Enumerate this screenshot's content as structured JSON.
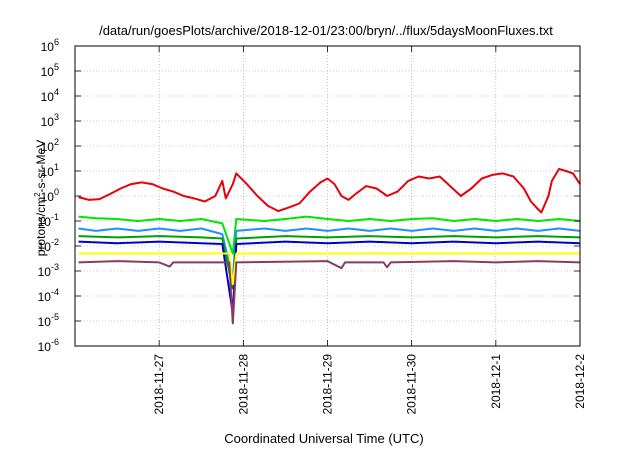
{
  "chart_data": {
    "type": "line",
    "title": "/data/run/goesPlots/archive/2018-12-01/23:00/bryn/../flux/5daysMoonFluxes.txt",
    "xlabel": "Coordinated Universal Time (UTC)",
    "ylabel": {
      "base": "protons/cm",
      "sup": "2",
      "rest": "-s-sr-MeV"
    },
    "x_ticks": [
      "2018-11-27",
      "2018-11-28",
      "2018-11-29",
      "2018-11-30",
      "2018-12-1",
      "2018-12-2"
    ],
    "x_range": [
      "2018-11-26 00:00",
      "2018-12-02 00:00"
    ],
    "y_scale": "log",
    "y_ticks": [
      {
        "base": "10",
        "exp": "-6"
      },
      {
        "base": "10",
        "exp": "-5"
      },
      {
        "base": "10",
        "exp": "-4"
      },
      {
        "base": "10",
        "exp": "-3"
      },
      {
        "base": "10",
        "exp": "-2"
      },
      {
        "base": "10",
        "exp": "-1"
      },
      {
        "base": "10",
        "exp": "0"
      },
      {
        "base": "10",
        "exp": "1"
      },
      {
        "base": "10",
        "exp": "2"
      },
      {
        "base": "10",
        "exp": "3"
      },
      {
        "base": "10",
        "exp": "4"
      },
      {
        "base": "10",
        "exp": "5"
      },
      {
        "base": "10",
        "exp": "6"
      }
    ],
    "y_range": [
      1e-06,
      1000000.0
    ],
    "grid": true,
    "series": [
      {
        "color": "#e8000b",
        "points": [
          [
            "2018-11-26 01:00",
            0.9
          ],
          [
            "2018-11-26 04:00",
            0.7
          ],
          [
            "2018-11-26 07:00",
            0.75
          ],
          [
            "2018-11-26 10:00",
            1.2
          ],
          [
            "2018-11-26 13:00",
            2.0
          ],
          [
            "2018-11-26 16:00",
            3.0
          ],
          [
            "2018-11-26 19:00",
            3.5
          ],
          [
            "2018-11-26 22:00",
            3.0
          ],
          [
            "2018-11-27 01:00",
            2.0
          ],
          [
            "2018-11-27 04:00",
            1.5
          ],
          [
            "2018-11-27 07:00",
            1.0
          ],
          [
            "2018-11-27 10:00",
            0.8
          ],
          [
            "2018-11-27 13:00",
            0.6
          ],
          [
            "2018-11-27 16:00",
            1.0
          ],
          [
            "2018-11-27 18:00",
            4.0
          ],
          [
            "2018-11-27 19:00",
            0.8
          ],
          [
            "2018-11-27 21:00",
            3.0
          ],
          [
            "2018-11-27 22:00",
            8.0
          ],
          [
            "2018-11-28 01:00",
            3.0
          ],
          [
            "2018-11-28 04:00",
            1.0
          ],
          [
            "2018-11-28 07:00",
            0.4
          ],
          [
            "2018-11-28 10:00",
            0.25
          ],
          [
            "2018-11-28 13:00",
            0.35
          ],
          [
            "2018-11-28 16:00",
            0.5
          ],
          [
            "2018-11-28 19:00",
            1.5
          ],
          [
            "2018-11-28 22:00",
            3.5
          ],
          [
            "2018-11-29 00:00",
            5.0
          ],
          [
            "2018-11-29 02:00",
            3.0
          ],
          [
            "2018-11-29 04:00",
            1.0
          ],
          [
            "2018-11-29 06:00",
            0.7
          ],
          [
            "2018-11-29 08:00",
            1.2
          ],
          [
            "2018-11-29 11:00",
            2.5
          ],
          [
            "2018-11-29 14:00",
            2.0
          ],
          [
            "2018-11-29 17:00",
            1.0
          ],
          [
            "2018-11-29 20:00",
            1.5
          ],
          [
            "2018-11-29 23:00",
            4.0
          ],
          [
            "2018-11-30 02:00",
            6.0
          ],
          [
            "2018-11-30 05:00",
            5.0
          ],
          [
            "2018-11-30 08:00",
            6.0
          ],
          [
            "2018-11-30 11:00",
            2.5
          ],
          [
            "2018-11-30 14:00",
            1.0
          ],
          [
            "2018-11-30 17:00",
            2.0
          ],
          [
            "2018-11-30 20:00",
            5.0
          ],
          [
            "2018-11-30 23:00",
            7.0
          ],
          [
            "2018-12-01 02:00",
            8.0
          ],
          [
            "2018-12-01 05:00",
            6.0
          ],
          [
            "2018-12-01 08:00",
            2.0
          ],
          [
            "2018-12-01 10:00",
            0.6
          ],
          [
            "2018-12-01 12:00",
            0.3
          ],
          [
            "2018-12-01 13:00",
            0.22
          ],
          [
            "2018-12-01 15:00",
            1.0
          ],
          [
            "2018-12-01 16:00",
            4.0
          ],
          [
            "2018-12-01 18:00",
            12.0
          ],
          [
            "2018-12-01 20:00",
            10.0
          ],
          [
            "2018-12-01 22:00",
            8.0
          ],
          [
            "2018-12-02 00:00",
            3.0
          ]
        ]
      },
      {
        "color": "#00e600",
        "points": [
          [
            "2018-11-26 01:00",
            0.15
          ],
          [
            "2018-11-26 06:00",
            0.13
          ],
          [
            "2018-11-26 12:00",
            0.12
          ],
          [
            "2018-11-26 18:00",
            0.1
          ],
          [
            "2018-11-27 00:00",
            0.12
          ],
          [
            "2018-11-27 06:00",
            0.1
          ],
          [
            "2018-11-27 12:00",
            0.12
          ],
          [
            "2018-11-27 18:00",
            0.08
          ],
          [
            "2018-11-27 21:00",
            0.005
          ],
          [
            "2018-11-27 22:00",
            0.12
          ],
          [
            "2018-11-28 06:00",
            0.1
          ],
          [
            "2018-11-28 12:00",
            0.12
          ],
          [
            "2018-11-28 18:00",
            0.15
          ],
          [
            "2018-11-29 00:00",
            0.12
          ],
          [
            "2018-11-29 06:00",
            0.1
          ],
          [
            "2018-11-29 12:00",
            0.12
          ],
          [
            "2018-11-29 18:00",
            0.1
          ],
          [
            "2018-11-30 00:00",
            0.12
          ],
          [
            "2018-11-30 06:00",
            0.13
          ],
          [
            "2018-11-30 12:00",
            0.1
          ],
          [
            "2018-11-30 18:00",
            0.12
          ],
          [
            "2018-12-01 00:00",
            0.1
          ],
          [
            "2018-12-01 06:00",
            0.12
          ],
          [
            "2018-12-01 12:00",
            0.1
          ],
          [
            "2018-12-01 18:00",
            0.12
          ],
          [
            "2018-12-02 00:00",
            0.1
          ]
        ]
      },
      {
        "color": "#1e90ff",
        "points": [
          [
            "2018-11-26 01:00",
            0.05
          ],
          [
            "2018-11-26 06:00",
            0.04
          ],
          [
            "2018-11-26 12:00",
            0.05
          ],
          [
            "2018-11-26 18:00",
            0.04
          ],
          [
            "2018-11-27 00:00",
            0.05
          ],
          [
            "2018-11-27 06:00",
            0.04
          ],
          [
            "2018-11-27 12:00",
            0.05
          ],
          [
            "2018-11-27 18:00",
            0.03
          ],
          [
            "2018-11-27 21:00",
            0.0005
          ],
          [
            "2018-11-27 22:00",
            0.04
          ],
          [
            "2018-11-28 06:00",
            0.05
          ],
          [
            "2018-11-28 12:00",
            0.04
          ],
          [
            "2018-11-28 18:00",
            0.05
          ],
          [
            "2018-11-29 00:00",
            0.04
          ],
          [
            "2018-11-29 06:00",
            0.05
          ],
          [
            "2018-11-29 12:00",
            0.04
          ],
          [
            "2018-11-29 18:00",
            0.05
          ],
          [
            "2018-11-30 00:00",
            0.04
          ],
          [
            "2018-11-30 06:00",
            0.05
          ],
          [
            "2018-11-30 12:00",
            0.04
          ],
          [
            "2018-11-30 18:00",
            0.05
          ],
          [
            "2018-12-01 00:00",
            0.04
          ],
          [
            "2018-12-01 06:00",
            0.05
          ],
          [
            "2018-12-01 12:00",
            0.04
          ],
          [
            "2018-12-01 18:00",
            0.05
          ],
          [
            "2018-12-02 00:00",
            0.04
          ]
        ]
      },
      {
        "color": "#00a000",
        "points": [
          [
            "2018-11-26 01:00",
            0.025
          ],
          [
            "2018-11-26 12:00",
            0.022
          ],
          [
            "2018-11-27 00:00",
            0.025
          ],
          [
            "2018-11-27 12:00",
            0.022
          ],
          [
            "2018-11-27 18:00",
            0.02
          ],
          [
            "2018-11-27 21:00",
            0.0002
          ],
          [
            "2018-11-27 22:00",
            0.02
          ],
          [
            "2018-11-28 12:00",
            0.025
          ],
          [
            "2018-11-29 00:00",
            0.022
          ],
          [
            "2018-11-29 12:00",
            0.025
          ],
          [
            "2018-11-30 00:00",
            0.022
          ],
          [
            "2018-11-30 12:00",
            0.025
          ],
          [
            "2018-12-01 00:00",
            0.022
          ],
          [
            "2018-12-01 12:00",
            0.025
          ],
          [
            "2018-12-02 00:00",
            0.022
          ]
        ]
      },
      {
        "color": "#0000cd",
        "points": [
          [
            "2018-11-26 01:00",
            0.015
          ],
          [
            "2018-11-26 12:00",
            0.013
          ],
          [
            "2018-11-27 00:00",
            0.015
          ],
          [
            "2018-11-27 12:00",
            0.013
          ],
          [
            "2018-11-27 18:00",
            0.012
          ],
          [
            "2018-11-27 21:00",
            2e-05
          ],
          [
            "2018-11-27 22:00",
            0.012
          ],
          [
            "2018-11-28 12:00",
            0.015
          ],
          [
            "2018-11-29 00:00",
            0.013
          ],
          [
            "2018-11-29 12:00",
            0.015
          ],
          [
            "2018-11-30 00:00",
            0.013
          ],
          [
            "2018-11-30 12:00",
            0.015
          ],
          [
            "2018-12-01 00:00",
            0.013
          ],
          [
            "2018-12-01 12:00",
            0.015
          ],
          [
            "2018-12-02 00:00",
            0.013
          ]
        ]
      },
      {
        "color": "#ffff00",
        "points": [
          [
            "2018-11-26 01:00",
            0.005
          ],
          [
            "2018-11-27 00:00",
            0.005
          ],
          [
            "2018-11-27 20:00",
            0.005
          ],
          [
            "2018-11-27 21:00",
            0.0003
          ],
          [
            "2018-11-27 22:00",
            0.005
          ],
          [
            "2018-11-29 00:00",
            0.005
          ],
          [
            "2018-11-30 00:00",
            0.005
          ],
          [
            "2018-12-01 00:00",
            0.005
          ],
          [
            "2018-12-02 00:00",
            0.005
          ]
        ]
      },
      {
        "color": "#8b3a62",
        "points": [
          [
            "2018-11-26 01:00",
            0.0022
          ],
          [
            "2018-11-26 12:00",
            0.0025
          ],
          [
            "2018-11-27 00:00",
            0.0022
          ],
          [
            "2018-11-27 03:00",
            0.0015
          ],
          [
            "2018-11-27 04:00",
            0.0022
          ],
          [
            "2018-11-27 20:00",
            0.0022
          ],
          [
            "2018-11-27 21:00",
            8e-06
          ],
          [
            "2018-11-27 22:00",
            0.0022
          ],
          [
            "2018-11-29 00:00",
            0.0025
          ],
          [
            "2018-11-29 04:00",
            0.0013
          ],
          [
            "2018-11-29 05:00",
            0.0022
          ],
          [
            "2018-11-29 16:00",
            0.0022
          ],
          [
            "2018-11-29 17:00",
            0.0014
          ],
          [
            "2018-11-29 18:00",
            0.0022
          ],
          [
            "2018-11-30 12:00",
            0.0025
          ],
          [
            "2018-12-01 00:00",
            0.0022
          ],
          [
            "2018-12-01 12:00",
            0.0025
          ],
          [
            "2018-12-02 00:00",
            0.0022
          ]
        ]
      }
    ]
  }
}
